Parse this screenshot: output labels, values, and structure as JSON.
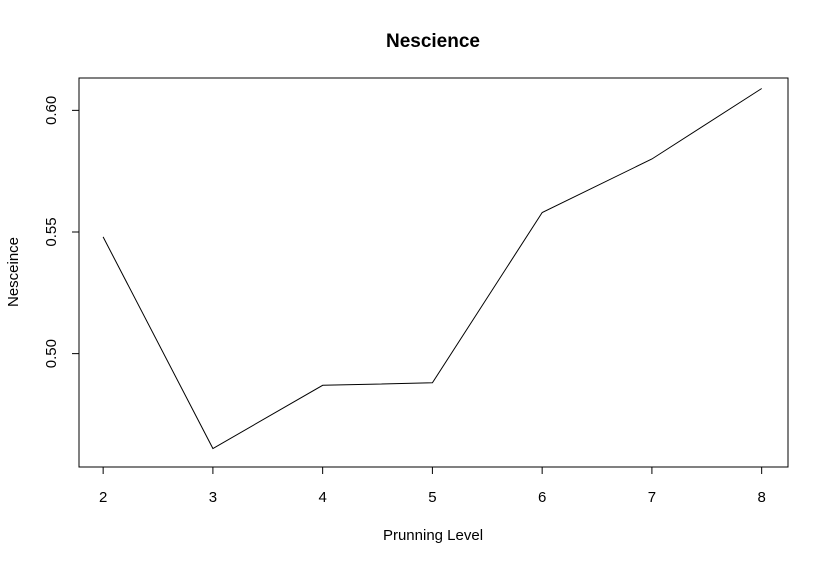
{
  "chart_data": {
    "type": "line",
    "title": "Nescience",
    "xlabel": "Prunning Level",
    "ylabel": "Nesceince",
    "x": [
      2,
      3,
      4,
      5,
      6,
      7,
      8
    ],
    "series": [
      {
        "values": [
          0.548,
          0.461,
          0.487,
          0.488,
          0.558,
          0.58,
          0.609
        ]
      }
    ],
    "xlim": [
      1.78,
      8.24
    ],
    "ylim": [
      0.4534,
      0.6133
    ],
    "xticks": [
      2,
      3,
      4,
      5,
      6,
      7,
      8
    ],
    "xtick_labels": [
      "2",
      "3",
      "4",
      "5",
      "6",
      "7",
      "8"
    ],
    "yticks": [
      0.5,
      0.55,
      0.6
    ],
    "ytick_labels": [
      "0.50",
      "0.55",
      "0.60"
    ],
    "grid": false,
    "legend": "none",
    "line_color": "#000000"
  }
}
